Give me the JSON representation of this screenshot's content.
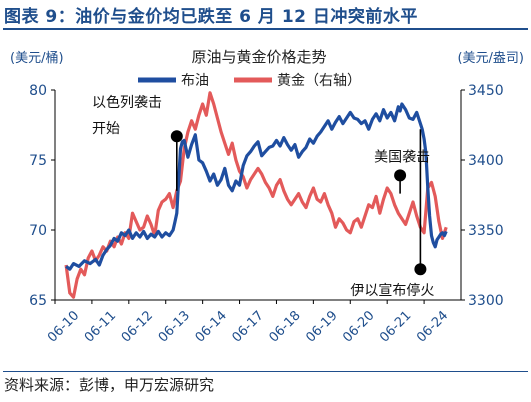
{
  "figure": {
    "title": "图表 9：油价与金价均已跌至 6 月 12 日冲突前水平",
    "source": "资料来源：彭博，申万宏源研究"
  },
  "colors": {
    "oil": "#1f4ea0",
    "gold": "#e35a5a",
    "title": "#1f4e8c",
    "axis_text": "#1f4e8c"
  },
  "chart_data": {
    "type": "line",
    "title": "原油与黄金价格走势",
    "ylabel_left": "(美元/桶)",
    "ylabel_right": "(美元/盎司)",
    "ylim_left": [
      65,
      80
    ],
    "ylim_right": [
      3300,
      3450
    ],
    "yticks_left": [
      65,
      70,
      75,
      80
    ],
    "yticks_right": [
      3300,
      3350,
      3400,
      3450
    ],
    "x_ticks": [
      "06-10",
      "06-11",
      "06-12",
      "06-13",
      "06-14",
      "06-17",
      "06-18",
      "06-19",
      "06-20",
      "06-21",
      "06-24"
    ],
    "legend_position": "top",
    "series": [
      {
        "name": "布油",
        "axis": "left",
        "x": [
          0,
          0.1,
          0.2,
          0.35,
          0.5,
          0.65,
          0.8,
          0.9,
          1.0,
          1.1,
          1.2,
          1.3,
          1.4,
          1.5,
          1.6,
          1.7,
          1.8,
          1.9,
          2.0,
          2.1,
          2.2,
          2.3,
          2.4,
          2.5,
          2.6,
          2.7,
          2.8,
          2.9,
          2.95,
          3.0,
          3.05,
          3.1,
          3.15,
          3.2,
          3.3,
          3.4,
          3.5,
          3.6,
          3.7,
          3.8,
          3.9,
          4.0,
          4.1,
          4.2,
          4.3,
          4.4,
          4.5,
          4.6,
          4.7,
          4.8,
          4.9,
          5.0,
          5.1,
          5.2,
          5.3,
          5.4,
          5.5,
          5.6,
          5.7,
          5.8,
          5.9,
          6.0,
          6.1,
          6.2,
          6.3,
          6.4,
          6.5,
          6.6,
          6.7,
          6.8,
          6.9,
          7.0,
          7.1,
          7.2,
          7.3,
          7.4,
          7.5,
          7.6,
          7.7,
          7.8,
          7.9,
          8.0,
          8.1,
          8.2,
          8.3,
          8.4,
          8.5,
          8.6,
          8.7,
          8.8,
          8.9,
          9.0,
          9.05,
          9.1,
          9.2,
          9.3,
          9.4,
          9.5,
          9.6,
          9.65,
          9.7,
          9.75,
          9.8,
          9.85,
          9.9,
          9.95,
          10.0,
          10.05,
          10.1,
          10.15,
          10.2,
          10.25,
          10.3
        ],
        "values": [
          67.4,
          67.2,
          67.6,
          67.4,
          67.8,
          67.6,
          67.9,
          67.5,
          68.2,
          68.6,
          68.9,
          69.4,
          69.2,
          69.8,
          69.6,
          70.0,
          69.4,
          69.8,
          69.5,
          69.9,
          69.4,
          69.7,
          69.5,
          69.9,
          69.5,
          69.8,
          69.6,
          70.0,
          70.6,
          71.2,
          73.5,
          75.8,
          76.3,
          76.4,
          75.2,
          76.1,
          76.8,
          75.0,
          74.8,
          74.2,
          73.5,
          74.0,
          73.2,
          73.6,
          74.4,
          73.2,
          72.8,
          73.5,
          73.2,
          74.6,
          75.3,
          75.6,
          76.0,
          76.3,
          75.3,
          75.6,
          75.9,
          76.0,
          76.4,
          76.0,
          76.6,
          76.1,
          75.7,
          76.1,
          75.2,
          75.6,
          75.9,
          76.5,
          76.2,
          76.7,
          77.0,
          77.4,
          77.8,
          77.2,
          77.7,
          78.1,
          77.6,
          78.0,
          78.4,
          78.0,
          77.9,
          77.6,
          77.8,
          77.2,
          77.9,
          78.3,
          77.8,
          78.6,
          78.0,
          78.4,
          77.8,
          78.8,
          78.5,
          79.0,
          78.6,
          78.0,
          77.9,
          78.4,
          77.6,
          77.2,
          76.5,
          75.5,
          73.0,
          71.0,
          69.6,
          69.1,
          68.8,
          69.3,
          69.5,
          69.7,
          69.8,
          69.6,
          69.9
        ]
      },
      {
        "name": "黄金（右轴）",
        "axis": "right",
        "x": [
          0,
          0.1,
          0.2,
          0.3,
          0.4,
          0.5,
          0.6,
          0.7,
          0.8,
          0.9,
          1.0,
          1.1,
          1.2,
          1.3,
          1.4,
          1.5,
          1.6,
          1.7,
          1.8,
          1.9,
          2.0,
          2.1,
          2.2,
          2.3,
          2.4,
          2.5,
          2.6,
          2.7,
          2.8,
          2.9,
          3.0,
          3.1,
          3.2,
          3.3,
          3.4,
          3.5,
          3.6,
          3.7,
          3.8,
          3.9,
          4.0,
          4.1,
          4.2,
          4.3,
          4.4,
          4.5,
          4.6,
          4.7,
          4.8,
          4.9,
          5.0,
          5.1,
          5.2,
          5.3,
          5.4,
          5.5,
          5.6,
          5.7,
          5.8,
          5.9,
          6.0,
          6.1,
          6.2,
          6.3,
          6.4,
          6.5,
          6.6,
          6.7,
          6.8,
          6.9,
          7.0,
          7.1,
          7.2,
          7.3,
          7.4,
          7.5,
          7.6,
          7.7,
          7.8,
          7.9,
          8.0,
          8.1,
          8.2,
          8.3,
          8.4,
          8.5,
          8.6,
          8.7,
          8.8,
          8.9,
          9.0,
          9.1,
          9.2,
          9.3,
          9.4,
          9.5,
          9.6,
          9.7,
          9.8,
          9.9,
          10.0,
          10.1,
          10.2,
          10.3
        ],
        "values": [
          3325,
          3305,
          3302,
          3315,
          3322,
          3318,
          3330,
          3335,
          3328,
          3332,
          3338,
          3335,
          3342,
          3338,
          3345,
          3340,
          3348,
          3344,
          3362,
          3356,
          3350,
          3352,
          3360,
          3354,
          3346,
          3364,
          3370,
          3372,
          3376,
          3366,
          3378,
          3385,
          3408,
          3420,
          3428,
          3422,
          3432,
          3440,
          3432,
          3448,
          3440,
          3430,
          3420,
          3412,
          3404,
          3412,
          3400,
          3392,
          3388,
          3380,
          3386,
          3390,
          3394,
          3390,
          3384,
          3380,
          3374,
          3382,
          3386,
          3378,
          3372,
          3368,
          3372,
          3376,
          3370,
          3366,
          3374,
          3380,
          3372,
          3370,
          3376,
          3368,
          3362,
          3352,
          3358,
          3355,
          3350,
          3348,
          3356,
          3358,
          3352,
          3360,
          3368,
          3366,
          3374,
          3362,
          3372,
          3380,
          3376,
          3368,
          3362,
          3358,
          3354,
          3362,
          3370,
          3360,
          3352,
          3348,
          3380,
          3384,
          3374,
          3356,
          3344,
          3352
        ]
      }
    ],
    "annotations": [
      {
        "text": [
          "以色列袭击",
          "开始"
        ],
        "x": 3.0,
        "y_left": 76.7,
        "y_left_end": 72.8,
        "box_anchor": "upper-left"
      },
      {
        "text": [
          "美国袭击"
        ],
        "x": 9.05,
        "y_left": 73.9,
        "y_left_end": 72.6,
        "box_anchor": "above"
      },
      {
        "text": [
          "伊以宣布停火"
        ],
        "x": 9.6,
        "y_left": 67.2,
        "y_left_end": 77.2,
        "box_anchor": "below"
      }
    ]
  }
}
